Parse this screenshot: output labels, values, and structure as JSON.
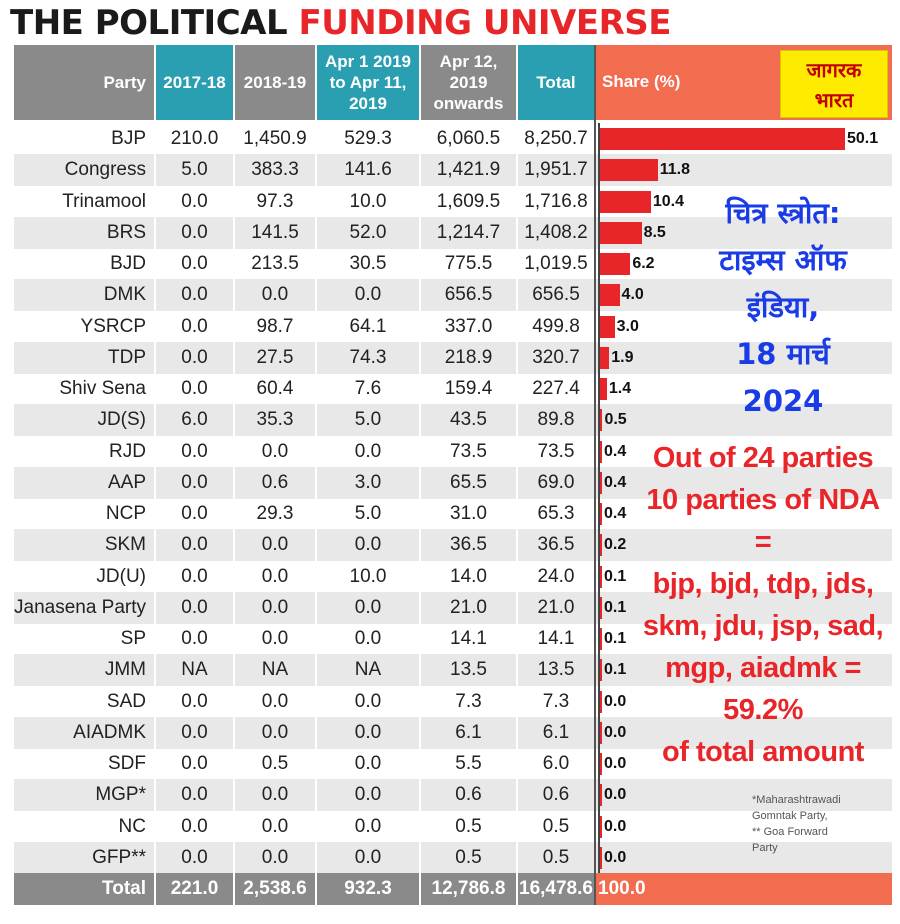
{
  "title": {
    "part1": "THE POLITICAL",
    "part2": "FUNDING UNIVERSE"
  },
  "badge": {
    "line1": "जागरक",
    "line2": "भारत"
  },
  "source_note": {
    "line1": "चित्र स्त्रोत:",
    "line2": "टाइम्स ऑफ",
    "line3": "इंडिया,",
    "line4": "18 मार्च",
    "line5": "2024"
  },
  "nda_note": {
    "line1": "Out of 24 parties",
    "line2": "10 parties of NDA =",
    "line3": "bjp, bjd, tdp, jds,",
    "line4": "skm, jdu, jsp, sad,",
    "line5": "mgp, aiadmk = 59.2%",
    "line6": "of total amount"
  },
  "footnote": {
    "line1": "*Maharashtrawadi",
    "line2": "Gomntak Party,",
    "line3": "** Goa Forward",
    "line4": "Party"
  },
  "colors": {
    "teal_header": "#2a9fb1",
    "grey_header": "#8a8a8a",
    "share_header": "#f26c50",
    "bar": "#e8262a",
    "title_red": "#e8262a",
    "source_blue": "#1a3ce6",
    "badge_yellow": "#ffeb00"
  },
  "chart_data": {
    "type": "table",
    "columns": [
      "Party",
      "2017-18",
      "2018-19",
      "Apr 1 2019 to Apr 11, 2019",
      "Apr 12, 2019 onwards",
      "Total",
      "Share (%)"
    ],
    "header_lines": {
      "party": [
        "Party"
      ],
      "c1718": [
        "2017-18"
      ],
      "c1819": [
        "2018-19"
      ],
      "capr1": [
        "Apr 1 2019",
        "to Apr 11,",
        "2019"
      ],
      "capr12": [
        "Apr 12,",
        "2019",
        "onwards"
      ],
      "total": [
        "Total"
      ],
      "share": [
        "Share (%)"
      ]
    },
    "rows": [
      {
        "party": "BJP",
        "y1718": "210.0",
        "y1819": "1,450.9",
        "apr1": "529.3",
        "apr12": "6,060.5",
        "total": "8,250.7",
        "share": 50.1,
        "share_label": "50.1"
      },
      {
        "party": "Congress",
        "y1718": "5.0",
        "y1819": "383.3",
        "apr1": "141.6",
        "apr12": "1,421.9",
        "total": "1,951.7",
        "share": 11.8,
        "share_label": "11.8"
      },
      {
        "party": "Trinamool",
        "y1718": "0.0",
        "y1819": "97.3",
        "apr1": "10.0",
        "apr12": "1,609.5",
        "total": "1,716.8",
        "share": 10.4,
        "share_label": "10.4"
      },
      {
        "party": "BRS",
        "y1718": "0.0",
        "y1819": "141.5",
        "apr1": "52.0",
        "apr12": "1,214.7",
        "total": "1,408.2",
        "share": 8.5,
        "share_label": "8.5"
      },
      {
        "party": "BJD",
        "y1718": "0.0",
        "y1819": "213.5",
        "apr1": "30.5",
        "apr12": "775.5",
        "total": "1,019.5",
        "share": 6.2,
        "share_label": "6.2"
      },
      {
        "party": "DMK",
        "y1718": "0.0",
        "y1819": "0.0",
        "apr1": "0.0",
        "apr12": "656.5",
        "total": "656.5",
        "share": 4.0,
        "share_label": "4.0"
      },
      {
        "party": "YSRCP",
        "y1718": "0.0",
        "y1819": "98.7",
        "apr1": "64.1",
        "apr12": "337.0",
        "total": "499.8",
        "share": 3.0,
        "share_label": "3.0"
      },
      {
        "party": "TDP",
        "y1718": "0.0",
        "y1819": "27.5",
        "apr1": "74.3",
        "apr12": "218.9",
        "total": "320.7",
        "share": 1.9,
        "share_label": "1.9"
      },
      {
        "party": "Shiv Sena",
        "y1718": "0.0",
        "y1819": "60.4",
        "apr1": "7.6",
        "apr12": "159.4",
        "total": "227.4",
        "share": 1.4,
        "share_label": "1.4"
      },
      {
        "party": "JD(S)",
        "y1718": "6.0",
        "y1819": "35.3",
        "apr1": "5.0",
        "apr12": "43.5",
        "total": "89.8",
        "share": 0.5,
        "share_label": "0.5"
      },
      {
        "party": "RJD",
        "y1718": "0.0",
        "y1819": "0.0",
        "apr1": "0.0",
        "apr12": "73.5",
        "total": "73.5",
        "share": 0.4,
        "share_label": "0.4"
      },
      {
        "party": "AAP",
        "y1718": "0.0",
        "y1819": "0.6",
        "apr1": "3.0",
        "apr12": "65.5",
        "total": "69.0",
        "share": 0.4,
        "share_label": "0.4"
      },
      {
        "party": "NCP",
        "y1718": "0.0",
        "y1819": "29.3",
        "apr1": "5.0",
        "apr12": "31.0",
        "total": "65.3",
        "share": 0.4,
        "share_label": "0.4"
      },
      {
        "party": "SKM",
        "y1718": "0.0",
        "y1819": "0.0",
        "apr1": "0.0",
        "apr12": "36.5",
        "total": "36.5",
        "share": 0.2,
        "share_label": "0.2"
      },
      {
        "party": "JD(U)",
        "y1718": "0.0",
        "y1819": "0.0",
        "apr1": "10.0",
        "apr12": "14.0",
        "total": "24.0",
        "share": 0.1,
        "share_label": "0.1"
      },
      {
        "party": "Janasena Party",
        "y1718": "0.0",
        "y1819": "0.0",
        "apr1": "0.0",
        "apr12": "21.0",
        "total": "21.0",
        "share": 0.1,
        "share_label": "0.1"
      },
      {
        "party": "SP",
        "y1718": "0.0",
        "y1819": "0.0",
        "apr1": "0.0",
        "apr12": "14.1",
        "total": "14.1",
        "share": 0.1,
        "share_label": "0.1"
      },
      {
        "party": "JMM",
        "y1718": "NA",
        "y1819": "NA",
        "apr1": "NA",
        "apr12": "13.5",
        "total": "13.5",
        "share": 0.1,
        "share_label": "0.1"
      },
      {
        "party": "SAD",
        "y1718": "0.0",
        "y1819": "0.0",
        "apr1": "0.0",
        "apr12": "7.3",
        "total": "7.3",
        "share": 0.0,
        "share_label": "0.0"
      },
      {
        "party": "AIADMK",
        "y1718": "0.0",
        "y1819": "0.0",
        "apr1": "0.0",
        "apr12": "6.1",
        "total": "6.1",
        "share": 0.0,
        "share_label": "0.0"
      },
      {
        "party": "SDF",
        "y1718": "0.0",
        "y1819": "0.5",
        "apr1": "0.0",
        "apr12": "5.5",
        "total": "6.0",
        "share": 0.0,
        "share_label": "0.0"
      },
      {
        "party": "MGP*",
        "y1718": "0.0",
        "y1819": "0.0",
        "apr1": "0.0",
        "apr12": "0.6",
        "total": "0.6",
        "share": 0.0,
        "share_label": "0.0"
      },
      {
        "party": "NC",
        "y1718": "0.0",
        "y1819": "0.0",
        "apr1": "0.0",
        "apr12": "0.5",
        "total": "0.5",
        "share": 0.0,
        "share_label": "0.0"
      },
      {
        "party": "GFP**",
        "y1718": "0.0",
        "y1819": "0.0",
        "apr1": "0.0",
        "apr12": "0.5",
        "total": "0.5",
        "share": 0.0,
        "share_label": "0.0"
      }
    ],
    "total_row": {
      "party": "Total",
      "y1718": "221.0",
      "y1819": "2,538.6",
      "apr1": "932.3",
      "apr12": "12,786.8",
      "total": "16,478.6",
      "share_label": "100.0"
    }
  }
}
